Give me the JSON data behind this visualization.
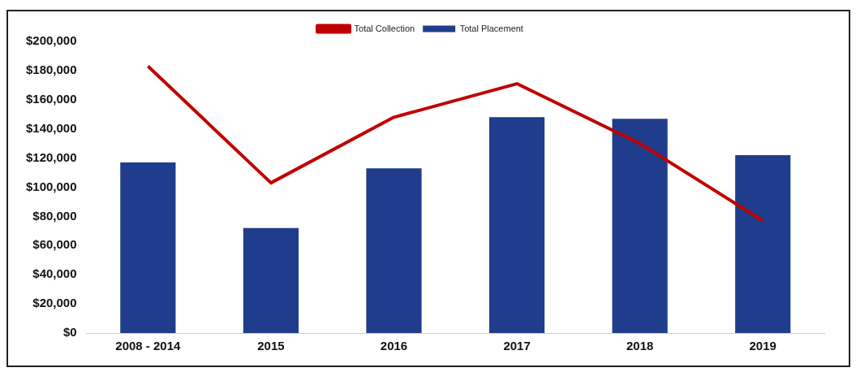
{
  "chart_data": {
    "type": "bar",
    "categories": [
      "2008 - 2014",
      "2015",
      "2016",
      "2017",
      "2018",
      "2019"
    ],
    "series": [
      {
        "name": "Total Placement",
        "color": "#1f3d8c",
        "values": [
          117000,
          72000,
          113000,
          148000,
          147000,
          122000
        ]
      },
      {
        "name": "Total Collection",
        "type": "line",
        "color": "#c00000",
        "values": [
          183000,
          103000,
          148000,
          171000,
          130000,
          77000
        ]
      }
    ],
    "ylim": [
      0,
      200000
    ],
    "yticks": [
      {
        "value": 0,
        "label": "$0"
      },
      {
        "value": 20000,
        "label": "$20,000"
      },
      {
        "value": 40000,
        "label": "$40,000"
      },
      {
        "value": 60000,
        "label": "$60,000"
      },
      {
        "value": 80000,
        "label": "$80,000"
      },
      {
        "value": 100000,
        "label": "$100,000"
      },
      {
        "value": 120000,
        "label": "$120,000"
      },
      {
        "value": 140000,
        "label": "$140,000"
      },
      {
        "value": 160000,
        "label": "$160,000"
      },
      {
        "value": 180000,
        "label": "$180,000"
      },
      {
        "value": 200000,
        "label": "$200,000"
      }
    ],
    "grid": false,
    "legend": "top",
    "marker": "none"
  }
}
